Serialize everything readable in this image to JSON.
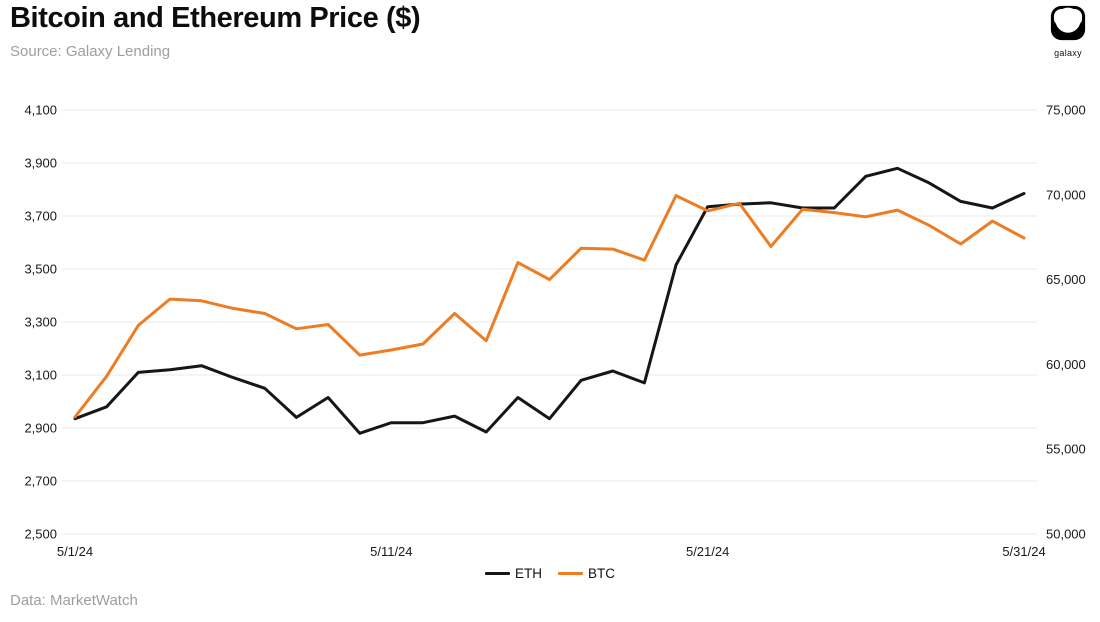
{
  "header": {
    "title": "Bitcoin and Ethereum Price ($)",
    "source": "Source: Galaxy Lending",
    "logo_label": "galaxy"
  },
  "footer": {
    "data_credit": "Data: MarketWatch"
  },
  "colors": {
    "eth_line": "#161616",
    "btc_line": "#ED7C23",
    "grid": "#e8e8e8",
    "axis_text": "#1a1a1a",
    "muted_text": "#9e9e9e"
  },
  "chart_data": {
    "type": "line",
    "title": "Bitcoin and Ethereum Price ($)",
    "x": [
      "5/1/24",
      "5/2/24",
      "5/3/24",
      "5/4/24",
      "5/5/24",
      "5/6/24",
      "5/7/24",
      "5/8/24",
      "5/9/24",
      "5/10/24",
      "5/11/24",
      "5/12/24",
      "5/13/24",
      "5/14/24",
      "5/15/24",
      "5/16/24",
      "5/17/24",
      "5/18/24",
      "5/19/24",
      "5/20/24",
      "5/21/24",
      "5/22/24",
      "5/23/24",
      "5/24/24",
      "5/25/24",
      "5/26/24",
      "5/27/24",
      "5/28/24",
      "5/29/24",
      "5/30/24",
      "5/31/24"
    ],
    "x_tick_labels": [
      "5/1/24",
      "5/11/24",
      "5/21/24",
      "5/31/24"
    ],
    "left_axis": {
      "ylim": [
        2500,
        4100
      ],
      "tick_step": 200,
      "ticks": [
        2500,
        2700,
        2900,
        3100,
        3300,
        3500,
        3700,
        3900,
        4100
      ]
    },
    "right_axis": {
      "ylim": [
        50000,
        75000
      ],
      "tick_step": 5000,
      "ticks": [
        50000,
        55000,
        60000,
        65000,
        70000,
        75000
      ]
    },
    "grid": "horizontal",
    "legend_position": "bottom-center",
    "series": [
      {
        "name": "ETH",
        "axis": "left",
        "color_key": "eth_line",
        "values": [
          2935,
          2980,
          3110,
          3120,
          3135,
          3090,
          3050,
          2940,
          3015,
          2880,
          2920,
          2920,
          2945,
          2885,
          3015,
          2935,
          3080,
          3115,
          3070,
          3515,
          3735,
          3745,
          3750,
          3730,
          3730,
          3850,
          3880,
          3825,
          3755,
          3730,
          3785
        ]
      },
      {
        "name": "BTC",
        "axis": "right",
        "color_key": "btc_line",
        "values": [
          56900,
          59300,
          62300,
          63850,
          63750,
          63300,
          63000,
          62100,
          62350,
          60550,
          60850,
          61200,
          63000,
          61400,
          66000,
          65000,
          66850,
          66800,
          66150,
          69950,
          69050,
          69500,
          66950,
          69150,
          68950,
          68700,
          69100,
          68200,
          67100,
          68450,
          67450
        ]
      }
    ]
  }
}
